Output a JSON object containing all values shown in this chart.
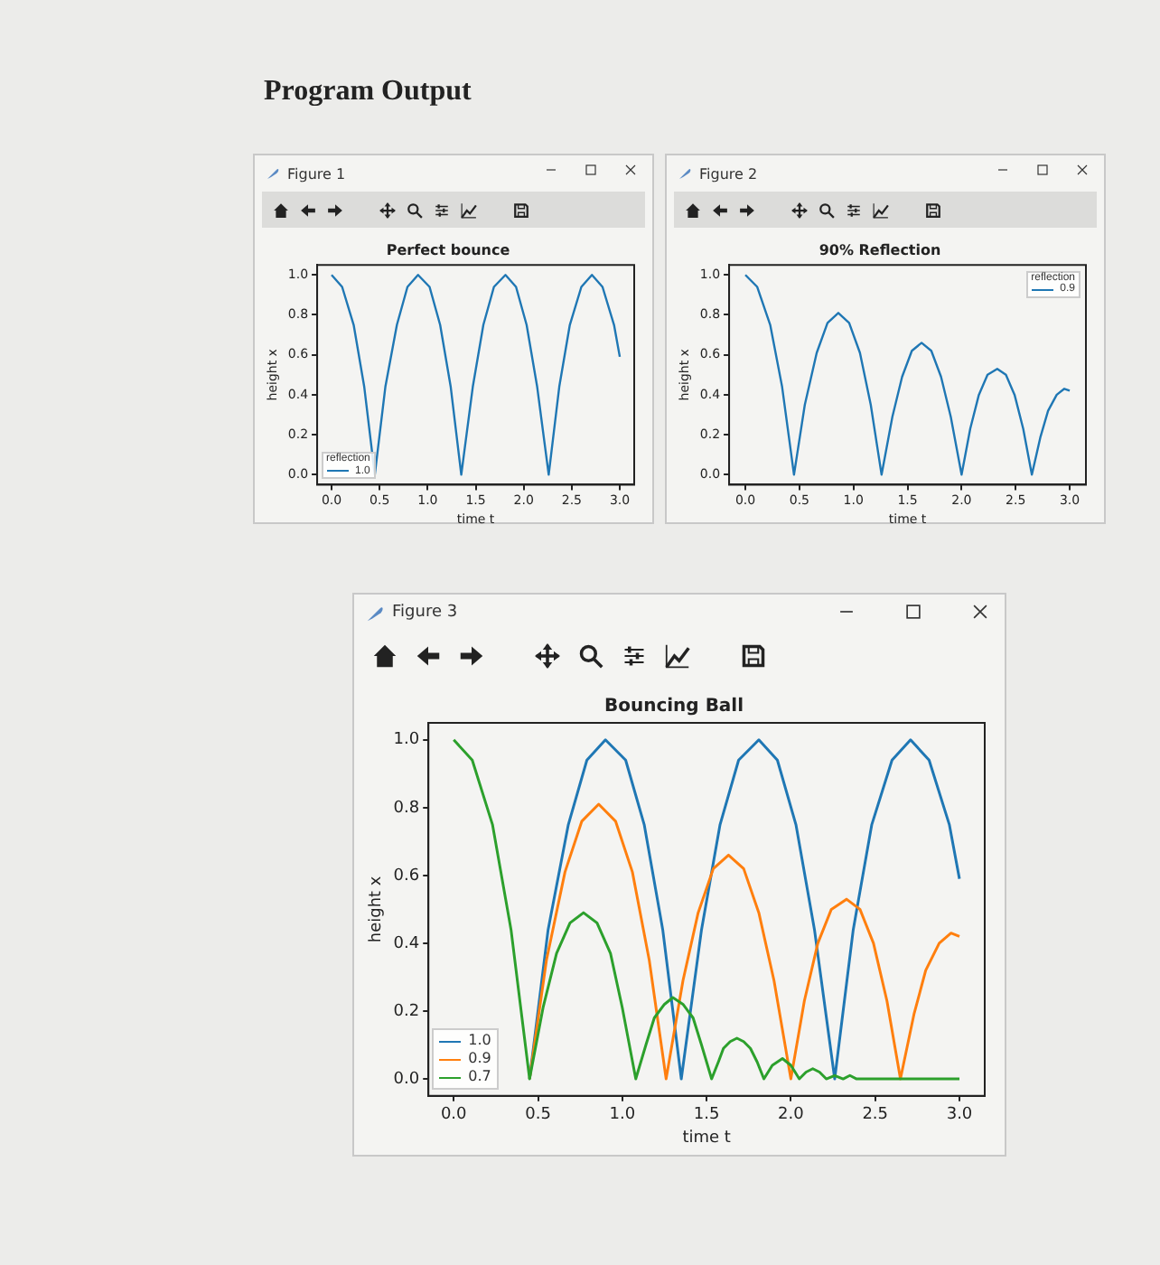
{
  "chart_data": [
    {
      "type": "line",
      "title": "Perfect bounce",
      "xlabel": "time t",
      "ylabel": "height x",
      "legend_title": "reflection",
      "legend": "bottom left",
      "annotations": [
        "Program Output",
        "Figure 1"
      ],
      "marker": "none",
      "line_style": "solid",
      "grid": false,
      "xlim": [
        -0.15,
        3.15
      ],
      "ylim": [
        -0.05,
        1.05
      ],
      "xticks": [
        {
          "value": 0,
          "label": "0.0"
        },
        {
          "value": 0.5,
          "label": "0.5"
        },
        {
          "value": 1,
          "label": "1.0"
        },
        {
          "value": 1.5,
          "label": "1.5"
        },
        {
          "value": 2,
          "label": "2.0"
        },
        {
          "value": 2.5,
          "label": "2.5"
        },
        {
          "value": 3,
          "label": "3.0"
        }
      ],
      "yticks": [
        {
          "value": 0,
          "label": "0.0"
        },
        {
          "value": 0.2,
          "label": "0.2"
        },
        {
          "value": 0.4,
          "label": "0.4"
        },
        {
          "value": 0.6,
          "label": "0.6"
        },
        {
          "value": 0.8,
          "label": "0.8"
        },
        {
          "value": 1,
          "label": "1.0"
        }
      ],
      "series": [
        {
          "name": "1.0",
          "color": "#1f77b4",
          "x": [
            0,
            0.11,
            0.23,
            0.34,
            0.45,
            0.56,
            0.68,
            0.79,
            0.9,
            1.02,
            1.13,
            1.24,
            1.35,
            1.47,
            1.58,
            1.69,
            1.81,
            1.92,
            2.03,
            2.14,
            2.26,
            2.37,
            2.48,
            2.6,
            2.71,
            2.82,
            2.94,
            3
          ],
          "values": [
            1,
            0.94,
            0.75,
            0.44,
            0,
            0.44,
            0.75,
            0.94,
            1,
            0.94,
            0.75,
            0.44,
            0,
            0.44,
            0.75,
            0.94,
            1,
            0.94,
            0.75,
            0.44,
            0,
            0.44,
            0.75,
            0.94,
            1,
            0.94,
            0.75,
            0.59
          ]
        }
      ]
    },
    {
      "type": "line",
      "title": "90% Reflection",
      "xlabel": "time t",
      "ylabel": "height x",
      "legend_title": "reflection",
      "legend": "top right",
      "annotations": [
        "Figure 2"
      ],
      "marker": "none",
      "line_style": "solid",
      "grid": false,
      "xlim": [
        -0.15,
        3.15
      ],
      "ylim": [
        -0.05,
        1.05
      ],
      "xticks": [
        {
          "value": 0,
          "label": "0.0"
        },
        {
          "value": 0.5,
          "label": "0.5"
        },
        {
          "value": 1,
          "label": "1.0"
        },
        {
          "value": 1.5,
          "label": "1.5"
        },
        {
          "value": 2,
          "label": "2.0"
        },
        {
          "value": 2.5,
          "label": "2.5"
        },
        {
          "value": 3,
          "label": "3.0"
        }
      ],
      "yticks": [
        {
          "value": 0,
          "label": "0.0"
        },
        {
          "value": 0.2,
          "label": "0.2"
        },
        {
          "value": 0.4,
          "label": "0.4"
        },
        {
          "value": 0.6,
          "label": "0.6"
        },
        {
          "value": 0.8,
          "label": "0.8"
        },
        {
          "value": 1,
          "label": "1.0"
        }
      ],
      "series": [
        {
          "name": "0.9",
          "color": "#1f77b4",
          "x": [
            0,
            0.11,
            0.23,
            0.34,
            0.45,
            0.55,
            0.66,
            0.76,
            0.86,
            0.96,
            1.06,
            1.16,
            1.26,
            1.36,
            1.45,
            1.54,
            1.63,
            1.72,
            1.81,
            1.9,
            2,
            2.08,
            2.16,
            2.24,
            2.33,
            2.41,
            2.49,
            2.57,
            2.65,
            2.73,
            2.8,
            2.88,
            2.95,
            3
          ],
          "values": [
            1,
            0.94,
            0.75,
            0.44,
            0,
            0.35,
            0.61,
            0.76,
            0.81,
            0.76,
            0.61,
            0.35,
            0,
            0.29,
            0.49,
            0.62,
            0.66,
            0.62,
            0.49,
            0.29,
            0,
            0.23,
            0.4,
            0.5,
            0.53,
            0.5,
            0.4,
            0.23,
            0,
            0.19,
            0.32,
            0.4,
            0.43,
            0.42
          ]
        }
      ]
    },
    {
      "type": "line",
      "title": "Bouncing Ball",
      "xlabel": "time t",
      "ylabel": "height x",
      "legend": "bottom left",
      "annotations": [
        "Figure 3"
      ],
      "marker": "none",
      "line_style": "solid",
      "grid": false,
      "xlim": [
        -0.15,
        3.15
      ],
      "ylim": [
        -0.05,
        1.05
      ],
      "xticks": [
        {
          "value": 0,
          "label": "0.0"
        },
        {
          "value": 0.5,
          "label": "0.5"
        },
        {
          "value": 1,
          "label": "1.0"
        },
        {
          "value": 1.5,
          "label": "1.5"
        },
        {
          "value": 2,
          "label": "2.0"
        },
        {
          "value": 2.5,
          "label": "2.5"
        },
        {
          "value": 3,
          "label": "3.0"
        }
      ],
      "yticks": [
        {
          "value": 0,
          "label": "0.0"
        },
        {
          "value": 0.2,
          "label": "0.2"
        },
        {
          "value": 0.4,
          "label": "0.4"
        },
        {
          "value": 0.6,
          "label": "0.6"
        },
        {
          "value": 0.8,
          "label": "0.8"
        },
        {
          "value": 1,
          "label": "1.0"
        }
      ],
      "series": [
        {
          "name": "1.0",
          "color": "#1f77b4",
          "x": [
            0.45,
            0.56,
            0.68,
            0.79,
            0.9,
            1.02,
            1.13,
            1.24,
            1.35,
            1.47,
            1.58,
            1.69,
            1.81,
            1.92,
            2.03,
            2.14,
            2.26,
            2.37,
            2.48,
            2.6,
            2.71,
            2.82,
            2.94,
            3
          ],
          "values": [
            0,
            0.44,
            0.75,
            0.94,
            1,
            0.94,
            0.75,
            0.44,
            0,
            0.44,
            0.75,
            0.94,
            1,
            0.94,
            0.75,
            0.44,
            0,
            0.44,
            0.75,
            0.94,
            1,
            0.94,
            0.75,
            0.59
          ]
        },
        {
          "name": "0.9",
          "color": "#ff7f0e",
          "x": [
            0.45,
            0.55,
            0.66,
            0.76,
            0.86,
            0.96,
            1.06,
            1.16,
            1.26,
            1.36,
            1.45,
            1.54,
            1.63,
            1.72,
            1.81,
            1.9,
            2,
            2.08,
            2.16,
            2.24,
            2.33,
            2.41,
            2.49,
            2.57,
            2.65,
            2.73,
            2.8,
            2.88,
            2.95,
            3
          ],
          "values": [
            0,
            0.35,
            0.61,
            0.76,
            0.81,
            0.76,
            0.61,
            0.35,
            0,
            0.29,
            0.49,
            0.62,
            0.66,
            0.62,
            0.49,
            0.29,
            0,
            0.23,
            0.4,
            0.5,
            0.53,
            0.5,
            0.4,
            0.23,
            0,
            0.19,
            0.32,
            0.4,
            0.43,
            0.42
          ]
        },
        {
          "name": "0.7",
          "color": "#2ca02c",
          "x": [
            0,
            0.11,
            0.23,
            0.34,
            0.45,
            0.53,
            0.61,
            0.69,
            0.77,
            0.85,
            0.93,
            1,
            1.08,
            1.14,
            1.19,
            1.25,
            1.3,
            1.36,
            1.42,
            1.47,
            1.53,
            1.57,
            1.6,
            1.64,
            1.68,
            1.72,
            1.76,
            1.8,
            1.84,
            1.89,
            1.95,
            2,
            2.05,
            2.09,
            2.13,
            2.17,
            2.21,
            2.26,
            2.31,
            2.35,
            2.39,
            2.56,
            3
          ],
          "values": [
            1,
            0.94,
            0.75,
            0.44,
            0,
            0.21,
            0.37,
            0.46,
            0.49,
            0.46,
            0.37,
            0.21,
            0,
            0.1,
            0.18,
            0.22,
            0.24,
            0.22,
            0.18,
            0.1,
            0,
            0.05,
            0.09,
            0.11,
            0.12,
            0.11,
            0.09,
            0.05,
            0,
            0.04,
            0.06,
            0.04,
            0,
            0.02,
            0.03,
            0.02,
            0,
            0.01,
            0,
            0.01,
            0,
            0,
            0
          ]
        }
      ]
    }
  ]
}
